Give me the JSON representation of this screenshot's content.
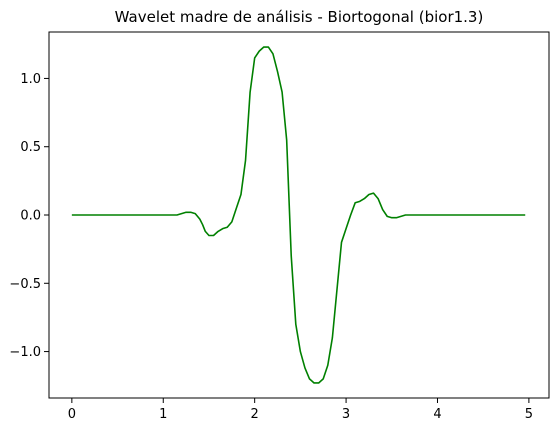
{
  "chart_data": {
    "type": "line",
    "title": "Wavelet madre de análisis - Biortogonal (bior1.3)",
    "xlabel": "",
    "ylabel": "",
    "xlim": [
      -0.25,
      5.22
    ],
    "ylim": [
      -1.34,
      1.34
    ],
    "xticks": [
      0,
      1,
      2,
      3,
      4,
      5
    ],
    "xtick_labels": [
      "0",
      "1",
      "2",
      "3",
      "4",
      "5"
    ],
    "yticks": [
      1.0,
      0.5,
      0.0,
      -0.5,
      -1.0
    ],
    "ytick_labels": [
      "1.0",
      "0.5",
      "0.0",
      "−0.5",
      "−1.0"
    ],
    "grid": false,
    "colors": {
      "line": "#008000",
      "axes": "#000000"
    },
    "series": [
      {
        "x": [
          0.0,
          0.5,
          1.0,
          1.1,
          1.15,
          1.2,
          1.25,
          1.3,
          1.35,
          1.4,
          1.43,
          1.46,
          1.5,
          1.55,
          1.6,
          1.65,
          1.7,
          1.75,
          1.8,
          1.85,
          1.9,
          1.95,
          2.0,
          2.05,
          2.1,
          2.15,
          2.2,
          2.25,
          2.3,
          2.35,
          2.4,
          2.45,
          2.5,
          2.55,
          2.6,
          2.65,
          2.7,
          2.75,
          2.8,
          2.85,
          2.9,
          2.95,
          3.0,
          3.05,
          3.1,
          3.15,
          3.2,
          3.25,
          3.3,
          3.35,
          3.4,
          3.45,
          3.5,
          3.55,
          3.6,
          3.65,
          3.7,
          3.75,
          3.8,
          3.85,
          4.0,
          4.5,
          4.96
        ],
        "y": [
          0.0,
          0.0,
          0.0,
          0.0,
          0.0,
          0.01,
          0.02,
          0.02,
          0.01,
          -0.03,
          -0.07,
          -0.12,
          -0.15,
          -0.15,
          -0.12,
          -0.1,
          -0.09,
          -0.05,
          0.05,
          0.15,
          0.4,
          0.9,
          1.15,
          1.2,
          1.23,
          1.23,
          1.18,
          1.05,
          0.9,
          0.55,
          -0.3,
          -0.8,
          -1.0,
          -1.12,
          -1.2,
          -1.23,
          -1.23,
          -1.2,
          -1.1,
          -0.9,
          -0.55,
          -0.2,
          -0.1,
          0.0,
          0.09,
          0.1,
          0.12,
          0.15,
          0.16,
          0.12,
          0.04,
          -0.01,
          -0.02,
          -0.02,
          -0.01,
          0.0,
          0.0,
          0.0,
          0.0,
          0.0,
          0.0,
          0.0,
          0.0
        ]
      }
    ]
  }
}
